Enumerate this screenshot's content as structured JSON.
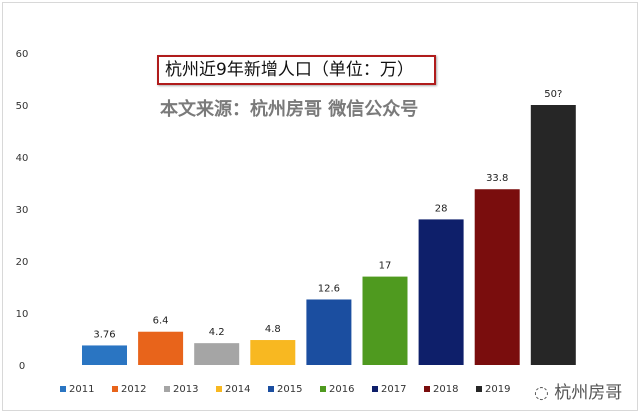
{
  "chart_data": {
    "type": "bar",
    "title": "杭州近9年新增人口（单位：万）",
    "subtitle": "本文来源：杭州房哥 微信公众号",
    "categories": [
      "2011",
      "2012",
      "2013",
      "2014",
      "2015",
      "2016",
      "2017",
      "2018",
      "2019"
    ],
    "values": [
      3.76,
      6.4,
      4.2,
      4.8,
      12.6,
      17,
      28,
      33.8,
      50
    ],
    "data_labels": [
      "3.76",
      "6.4",
      "4.2",
      "4.8",
      "12.6",
      "17",
      "28",
      "33.8",
      "50?"
    ],
    "colors": [
      "#2a75c2",
      "#e8641b",
      "#a5a5a5",
      "#f8b821",
      "#1b4ea0",
      "#4f9a1f",
      "#0e1f6a",
      "#7a0d0d",
      "#262626"
    ],
    "ylim": [
      0,
      60
    ],
    "yticks": [
      "0",
      "10",
      "20",
      "30",
      "40",
      "50",
      "60"
    ],
    "xlabel": "",
    "ylabel": "",
    "grid": false,
    "legend": "bottom",
    "watermark": "杭州房哥"
  }
}
